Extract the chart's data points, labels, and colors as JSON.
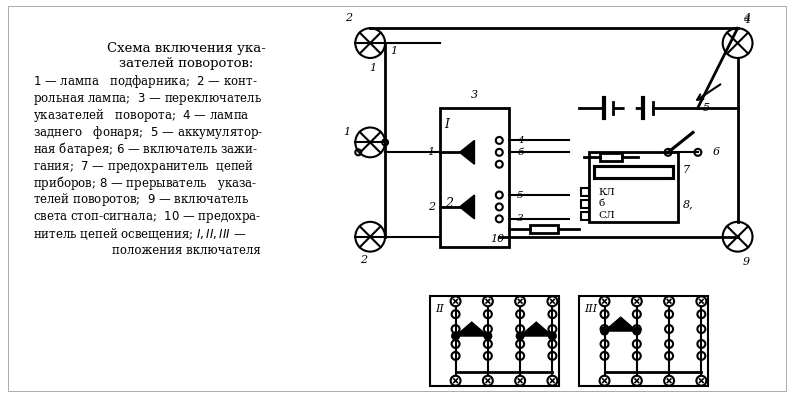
{
  "bg_color": "#ffffff",
  "line_color": "#000000",
  "fig_width": 7.94,
  "fig_height": 3.97,
  "title": "Схема включения ука-\nзателей поворотов:",
  "legend_lines": [
    "1 — лампа  подфарника;  2 — конт-",
    "рольная  лампа;  3 —— переключатель",
    "указателей  поворота;  4 —— лампа",
    "заднего  фонаря;  5 — аккумулятор-",
    "ная батарея; 6 — включатель зажи-",
    "гания;  7 — предохранитель  цепей",
    "приборов; 8 — прерыватель указа-",
    "телей поворотов;  9 — включатель",
    "света стоп-сигнала;  10 —— предохра-",
    "нитель цепей освещения; I, II, III —",
    "положения включателя"
  ]
}
